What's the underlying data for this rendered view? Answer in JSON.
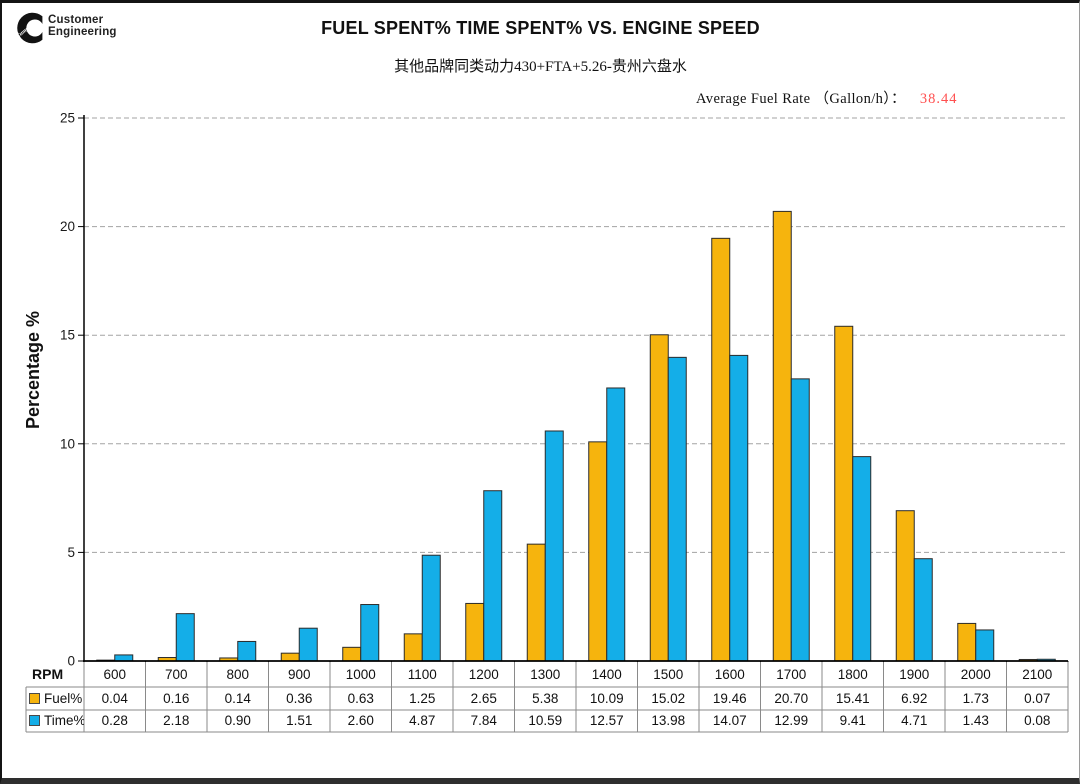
{
  "header": {
    "logo": {
      "brand_script": "Cummins",
      "line1": "Customer",
      "line2": "Engineering"
    },
    "title": "FUEL SPENT% TIME SPENT% VS. ENGINE SPEED",
    "subtitle": "其他品牌同类动力430+FTA+5.26-贵州六盘水",
    "avg_fuel_rate_label": "Average Fuel Rate （Gallon/h）：",
    "avg_fuel_rate_value": "38.44"
  },
  "colors": {
    "fuel_bar": "#F6B40D",
    "time_bar": "#14AEE8",
    "bar_outline": "#2b2b2b",
    "gridline": "#a3a3a3",
    "axis": "#000000",
    "table_border": "#8a8a8a",
    "avg_value_red": "#FF5050"
  },
  "chart_data": {
    "type": "bar",
    "title": "FUEL SPENT% TIME SPENT% VS. ENGINE SPEED",
    "subtitle": "其他品牌同类动力430+FTA+5.26-贵州六盘水",
    "xlabel": "RPM",
    "ylabel": "Percentage %",
    "ylim": [
      0,
      25
    ],
    "yticks": [
      0,
      5,
      10,
      15,
      20,
      25
    ],
    "grid": "horizontal-dashed",
    "legend_position": "table-row-headers",
    "categories": [
      600,
      700,
      800,
      900,
      1000,
      1100,
      1200,
      1300,
      1400,
      1500,
      1600,
      1700,
      1800,
      1900,
      2000,
      2100
    ],
    "series": [
      {
        "name": "Fuel%",
        "color": "#F6B40D",
        "values": [
          0.04,
          0.16,
          0.14,
          0.36,
          0.63,
          1.25,
          2.65,
          5.38,
          10.09,
          15.02,
          19.46,
          20.7,
          15.41,
          6.92,
          1.73,
          0.07
        ]
      },
      {
        "name": "Time%",
        "color": "#14AEE8",
        "values": [
          0.28,
          2.18,
          0.9,
          1.51,
          2.6,
          4.87,
          7.84,
          10.59,
          12.57,
          13.98,
          14.07,
          12.99,
          9.41,
          4.71,
          1.43,
          0.08
        ]
      }
    ],
    "annotation": {
      "label": "Average Fuel Rate （Gallon/h）：",
      "value": 38.44
    }
  },
  "table": {
    "row_header": "RPM",
    "row_labels": [
      "Fuel%",
      "Time%"
    ],
    "value_decimals": 2
  }
}
